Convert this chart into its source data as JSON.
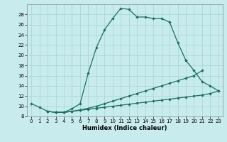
{
  "xlabel": "Humidex (Indice chaleur)",
  "bg_color": "#c8eced",
  "grid_color": "#a8d8d8",
  "line_color": "#1a7060",
  "xlim": [
    -0.5,
    23.5
  ],
  "ylim": [
    8,
    30
  ],
  "yticks": [
    8,
    10,
    12,
    14,
    16,
    18,
    20,
    22,
    24,
    26,
    28
  ],
  "ytick_labels": [
    "8",
    "10",
    "12",
    "14",
    "16",
    "18",
    "20",
    "22",
    "24",
    "26",
    "28"
  ],
  "xticks": [
    0,
    1,
    2,
    3,
    4,
    5,
    6,
    7,
    8,
    9,
    10,
    11,
    12,
    13,
    14,
    15,
    16,
    17,
    18,
    19,
    20,
    21,
    22,
    23
  ],
  "xtick_labels": [
    "0",
    "1",
    "2",
    "3",
    "4",
    "5",
    "6",
    "7",
    "8",
    "9",
    "10",
    "11",
    "12",
    "13",
    "14",
    "15",
    "16",
    "17",
    "18",
    "19",
    "20",
    "21",
    "22",
    "23"
  ],
  "series": [
    {
      "x": [
        0,
        1,
        2,
        3,
        4,
        5,
        6,
        7,
        8,
        9,
        10,
        11,
        12,
        13,
        14,
        15,
        16,
        17,
        18,
        19
      ],
      "y": [
        10.5,
        9.8,
        9.0,
        8.8,
        8.8,
        9.5,
        10.5,
        16.5,
        21.5,
        25.0,
        27.2,
        29.2,
        29.0,
        27.5,
        27.5,
        27.2,
        27.2,
        26.5,
        22.5,
        19.0
      ]
    },
    {
      "x": [
        19,
        20,
        21,
        22,
        23
      ],
      "y": [
        19.0,
        17.0,
        14.8,
        14.0,
        13.0
      ]
    },
    {
      "x": [
        2,
        3,
        4,
        5,
        6,
        7,
        8,
        9,
        10,
        11,
        12,
        13,
        14,
        15,
        16,
        17,
        18,
        19,
        20,
        21
      ],
      "y": [
        9.0,
        8.8,
        8.8,
        9.0,
        9.3,
        9.6,
        10.0,
        10.5,
        11.0,
        11.5,
        12.0,
        12.5,
        13.0,
        13.5,
        14.0,
        14.5,
        15.0,
        15.5,
        16.0,
        17.0
      ]
    },
    {
      "x": [
        2,
        3,
        4,
        5,
        6,
        7,
        8,
        9,
        10,
        11,
        12,
        13,
        14,
        15,
        16,
        17,
        18,
        19,
        20,
        21,
        22,
        23
      ],
      "y": [
        9.0,
        8.8,
        8.8,
        9.0,
        9.2,
        9.4,
        9.6,
        9.8,
        10.0,
        10.2,
        10.4,
        10.6,
        10.8,
        11.0,
        11.2,
        11.4,
        11.6,
        11.8,
        12.0,
        12.2,
        12.5,
        13.0
      ]
    }
  ]
}
